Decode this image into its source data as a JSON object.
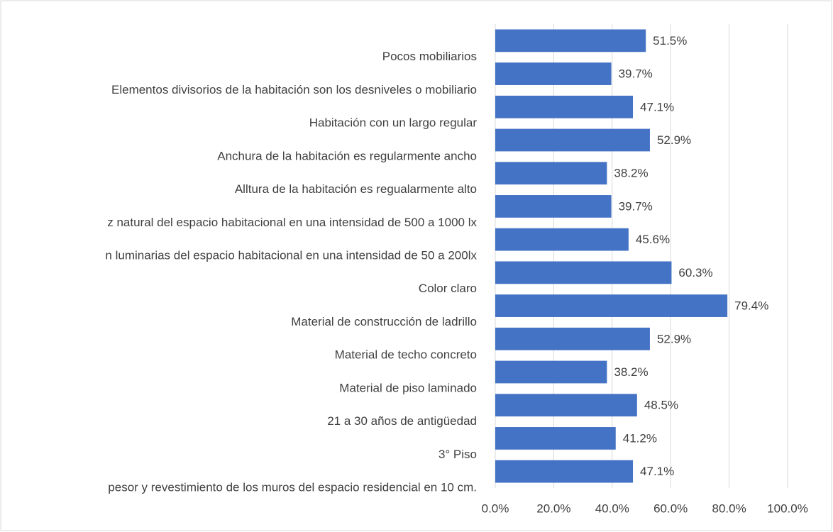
{
  "chart_data": {
    "type": "barh",
    "categories": [
      "Pocos mobiliarios",
      "Elementos divisorios de la habitación son los desniveles o mobiliario",
      "Habitación con un largo regular",
      "Anchura de la habitación es regularmente ancho",
      "Alltura de la habitación es regualarmente alto",
      "z natural del espacio habitacional en una intensidad de 500 a 1000 lx",
      "n luminarias del espacio habitacional en una intensidad de 50 a 200lx",
      "Color claro",
      "Material de construcción de ladrillo",
      "Material de techo concreto",
      "Material de piso laminado",
      "21 a 30 años de antigüedad",
      "3° Piso",
      "pesor y revestimiento de los muros del espacio residencial en 10 cm."
    ],
    "values": [
      51.5,
      39.7,
      47.1,
      52.9,
      38.2,
      39.7,
      45.6,
      60.3,
      79.4,
      52.9,
      38.2,
      48.5,
      41.2,
      47.1
    ],
    "value_labels": [
      "51.5%",
      "39.7%",
      "47.1%",
      "52.9%",
      "38.2%",
      "39.7%",
      "45.6%",
      "60.3%",
      "79.4%",
      "52.9%",
      "38.2%",
      "48.5%",
      "41.2%",
      "47.1%"
    ],
    "color": "#4472c4",
    "xlim": [
      0,
      100
    ],
    "xticks": [
      {
        "value": 0,
        "label": "0.0%"
      },
      {
        "value": 20,
        "label": "20.0%"
      },
      {
        "value": 40,
        "label": "40.0%"
      },
      {
        "value": 60,
        "label": "60.0%"
      },
      {
        "value": 80,
        "label": "80.0%"
      },
      {
        "value": 100,
        "label": "100.0%"
      }
    ],
    "grid": true
  }
}
